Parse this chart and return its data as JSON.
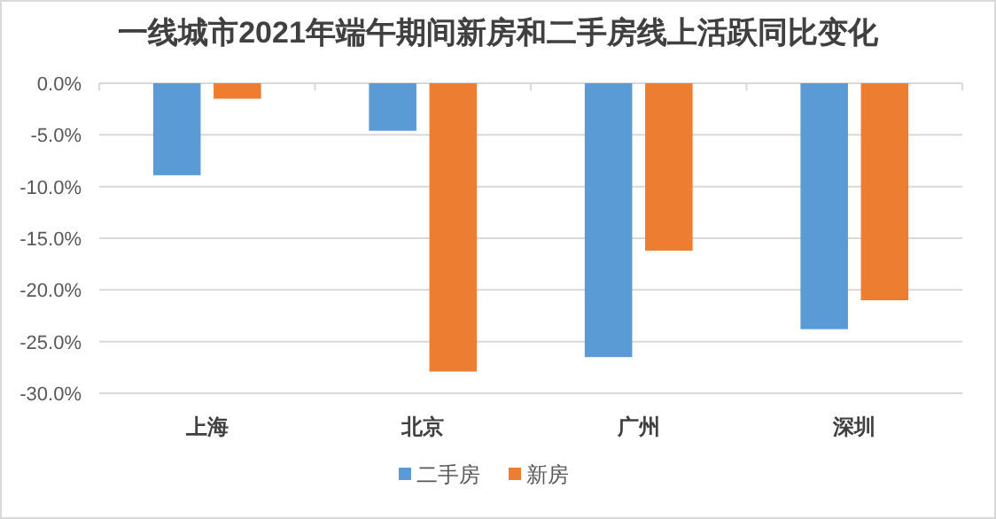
{
  "chart_data": {
    "type": "bar",
    "title": "一线城市2021年端午期间新房和二手房线上活跃同比变化",
    "categories": [
      "上海",
      "北京",
      "广州",
      "深圳"
    ],
    "series": [
      {
        "name": "二手房",
        "color": "#5b9bd5",
        "values": [
          -8.9,
          -4.6,
          -26.5,
          -23.8
        ]
      },
      {
        "name": "新房",
        "color": "#ed7d31",
        "values": [
          -1.5,
          -27.9,
          -16.2,
          -21.0
        ]
      }
    ],
    "ylim": [
      -30,
      0
    ],
    "yticks": [
      {
        "value": 0,
        "label": "0.0%"
      },
      {
        "value": -5,
        "label": "-5.0%"
      },
      {
        "value": -10,
        "label": "-10.0%"
      },
      {
        "value": -15,
        "label": "-15.0%"
      },
      {
        "value": -20,
        "label": "-20.0%"
      },
      {
        "value": -25,
        "label": "-25.0%"
      },
      {
        "value": -30,
        "label": "-30.0%"
      }
    ],
    "grid": "y",
    "legend": "bottom"
  }
}
